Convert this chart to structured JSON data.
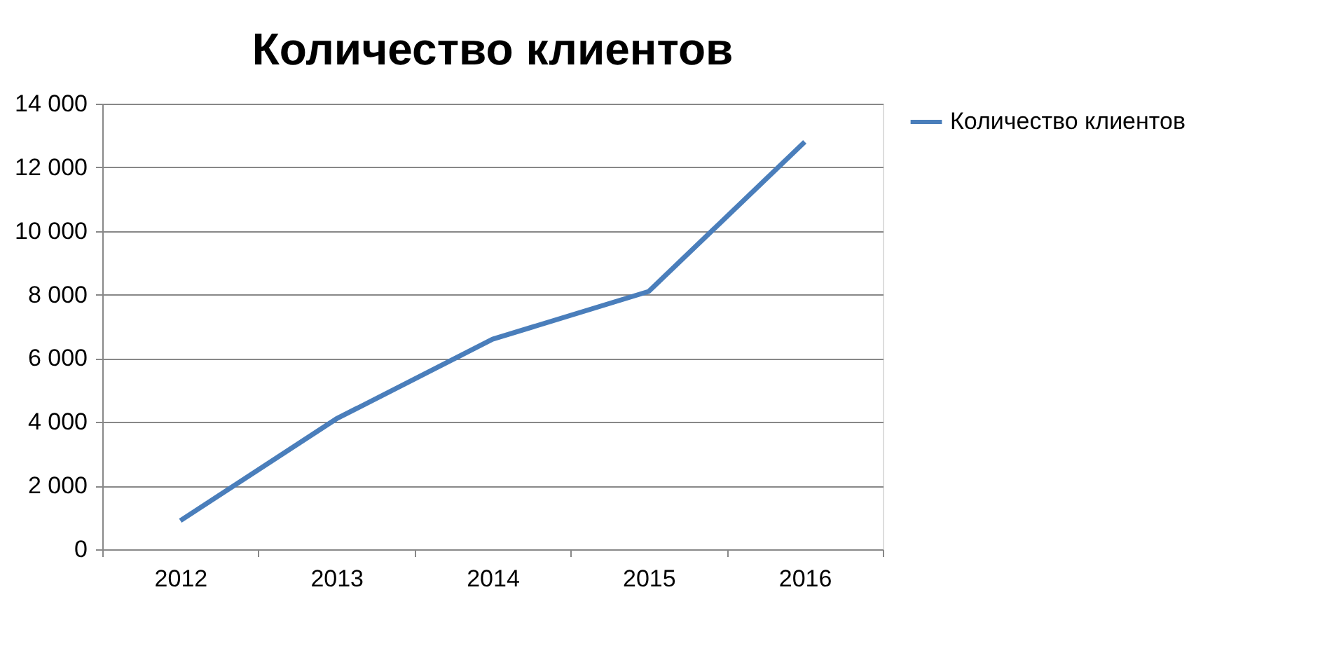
{
  "chart_data": {
    "type": "line",
    "title": "Количество клиентов",
    "categories": [
      "2012",
      "2013",
      "2014",
      "2015",
      "2016"
    ],
    "series": [
      {
        "name": "Количество  клиентов",
        "color": "#4a7ebb",
        "values": [
          900,
          4100,
          6600,
          8100,
          12800
        ]
      }
    ],
    "ylim": [
      0,
      14000
    ],
    "yticks": [
      0,
      {
        "value": 2000,
        "label": "2 000"
      },
      {
        "value": 4000,
        "label": "4 000"
      },
      {
        "value": 6000,
        "label": "6 000"
      },
      {
        "value": 8000,
        "label": "8 000"
      },
      {
        "value": 10000,
        "label": "10 000"
      },
      {
        "value": 12000,
        "label": "12 000"
      },
      {
        "value": 14000,
        "label": "14 000"
      }
    ],
    "grid": "y",
    "legend": "right",
    "marker": "none",
    "line_style": "solid"
  }
}
